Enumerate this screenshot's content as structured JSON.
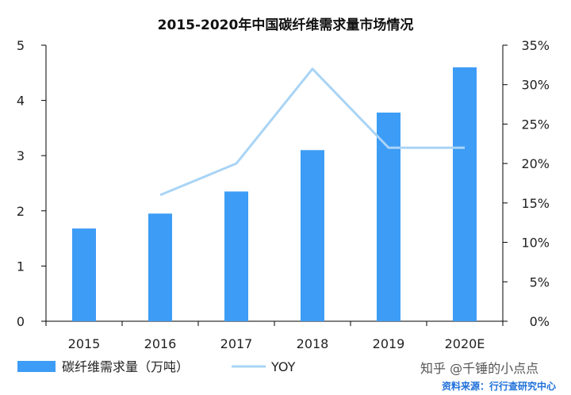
{
  "chart_data": {
    "type": "bar",
    "title": "2015-2020年中国碳纤维需求量市场情况",
    "categories": [
      "2015",
      "2016",
      "2017",
      "2018",
      "2019",
      "2020E"
    ],
    "series": [
      {
        "name": "碳纤维需求量（万吨）",
        "type": "bar",
        "axis": "left",
        "values": [
          1.68,
          1.95,
          2.35,
          3.1,
          3.78,
          4.6
        ]
      },
      {
        "name": "YOY",
        "type": "line",
        "axis": "right",
        "values": [
          null,
          0.16,
          0.2,
          0.32,
          0.22,
          0.22
        ]
      }
    ],
    "ylim": [
      0,
      5
    ],
    "y_ticks": [
      "0",
      "1",
      "2",
      "3",
      "4",
      "5"
    ],
    "y2lim": [
      0,
      0.35
    ],
    "y2_ticks": [
      "0%",
      "5%",
      "10%",
      "15%",
      "20%",
      "25%",
      "30%",
      "35%"
    ],
    "grid": false,
    "legend": "bottom-left",
    "colors": {
      "bar": "#3d9cf5",
      "line": "#a9d4f5",
      "axis": "#000000"
    }
  },
  "watermark": "知乎 @千锤的小点点",
  "source": "资料来源：行行查研究中心"
}
